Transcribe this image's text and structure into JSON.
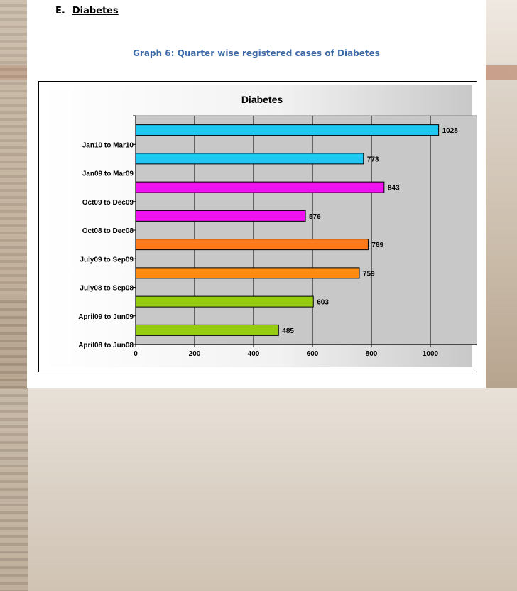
{
  "section": {
    "letter": "E.",
    "name": "Diabetes"
  },
  "graph_caption": "Graph 6: Quarter wise registered cases of Diabetes",
  "chart_data": {
    "type": "bar",
    "orientation": "horizontal",
    "title": "Diabetes",
    "xlabel": "",
    "ylabel": "",
    "xlim": [
      0,
      1200
    ],
    "xticks": [
      0,
      200,
      400,
      600,
      800,
      1000,
      1200
    ],
    "grid": "vertical",
    "legend": "none",
    "category_labels": [
      "Jan10 to Mar10",
      "Jan09 to Mar09",
      "Oct09 to Dec09",
      "Oct08 to Dec08",
      "July09 to Sep09",
      "July08 to Sep08",
      "April09 to Jun09",
      "April08 to Jun08"
    ],
    "bars": [
      {
        "value": 1028,
        "color": "#1ec8f0"
      },
      {
        "value": 773,
        "color": "#1ec8f0"
      },
      {
        "value": 843,
        "color": "#f010f0"
      },
      {
        "value": 576,
        "color": "#f010f0"
      },
      {
        "value": 789,
        "color": "#ff7a1a"
      },
      {
        "value": 759,
        "color": "#ff8c10"
      },
      {
        "value": 603,
        "color": "#96cc10"
      },
      {
        "value": 485,
        "color": "#96cc10"
      }
    ],
    "plot_background": "#c8c8c8",
    "outer_background": "#ffffff"
  }
}
